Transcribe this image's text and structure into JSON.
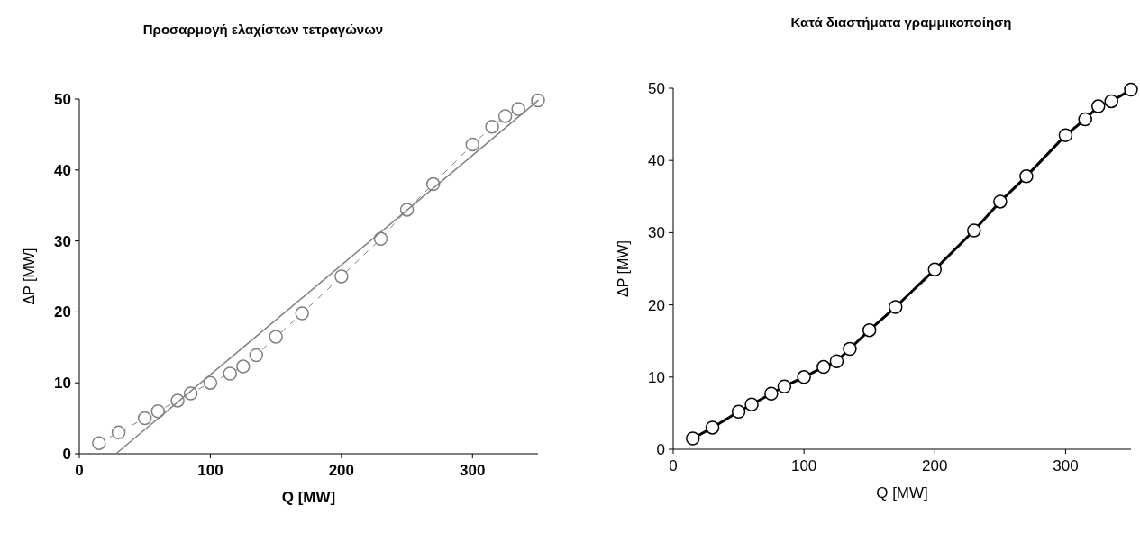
{
  "chart_data": [
    {
      "type": "line",
      "title": "Προσαρμογή ελαχίστων τετραγώνων",
      "xlabel": "Q [MW]",
      "ylabel": "ΔP [MW]",
      "x": [
        15,
        30,
        50,
        60,
        75,
        85,
        100,
        115,
        125,
        135,
        150,
        170,
        200,
        230,
        250,
        270,
        300,
        315,
        325,
        335,
        350
      ],
      "xlim": [
        0,
        350
      ],
      "xticks": [
        0,
        100,
        200,
        300
      ],
      "ylim": [
        0,
        50
      ],
      "yticks": [
        0,
        10,
        20,
        30,
        40,
        50
      ],
      "series": [
        {
          "color": "#808080",
          "line_style": "dashed",
          "marker": "circle",
          "values": [
            1.5,
            3,
            5,
            6,
            7.5,
            8.5,
            10,
            11.3,
            12.3,
            13.9,
            16.5,
            19.8,
            25,
            30.3,
            34.4,
            38,
            43.6,
            46.1,
            47.6,
            48.6,
            49.8
          ]
        },
        {
          "color": "#808080",
          "line_style": "solid",
          "marker": "none",
          "x": [
            28,
            350
          ],
          "values": [
            0,
            49.8
          ]
        }
      ]
    },
    {
      "type": "line",
      "title": "Κατά διαστήματα γραμμικοποίηση",
      "xlabel": "Q [MW]",
      "ylabel": "ΔP [MW]",
      "x": [
        15,
        30,
        50,
        60,
        75,
        85,
        100,
        115,
        125,
        135,
        150,
        170,
        200,
        230,
        250,
        270,
        300,
        315,
        325,
        335,
        350
      ],
      "xlim": [
        0,
        350
      ],
      "xticks": [
        0,
        100,
        200,
        300
      ],
      "ylim": [
        0,
        50
      ],
      "yticks": [
        0,
        10,
        20,
        30,
        40,
        50
      ],
      "series": [
        {
          "color": "#000000",
          "line_style": "solid",
          "marker": "circle",
          "values": [
            1.5,
            3,
            5.2,
            6.2,
            7.7,
            8.7,
            10,
            11.4,
            12.2,
            13.9,
            16.5,
            19.7,
            24.9,
            30.3,
            34.3,
            37.8,
            43.5,
            45.7,
            47.5,
            48.2,
            49.8
          ]
        }
      ]
    }
  ]
}
